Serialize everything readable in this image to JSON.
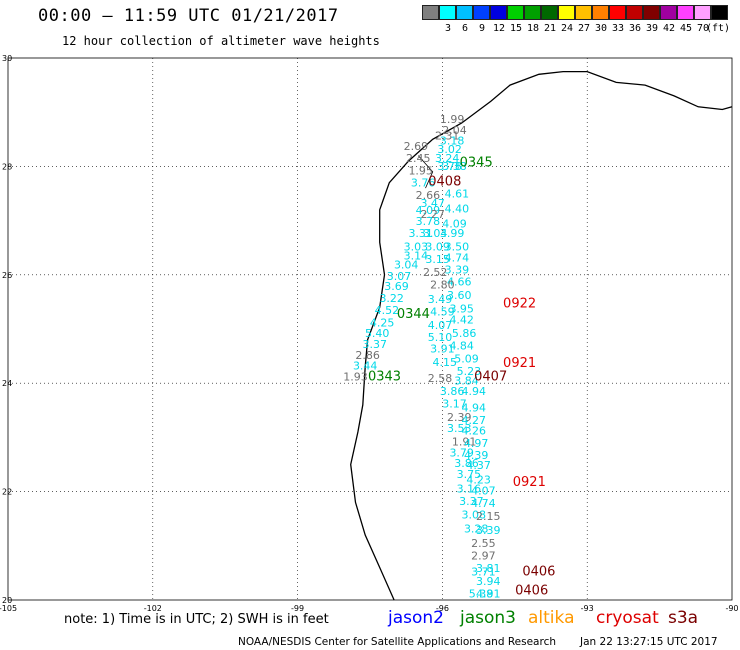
{
  "title": "00:00 – 11:59 UTC 01/21/2017",
  "subtitle": "12 hour collection of altimeter wave heights",
  "legend": {
    "unit": "(ft)",
    "bins": [
      {
        "label": "",
        "color": "#7f7f7f"
      },
      {
        "label": "3",
        "color": "#00ffff"
      },
      {
        "label": "6",
        "color": "#00bfff"
      },
      {
        "label": "9",
        "color": "#0040ff"
      },
      {
        "label": "12",
        "color": "#0000e0"
      },
      {
        "label": "15",
        "color": "#00d000"
      },
      {
        "label": "18",
        "color": "#00a000"
      },
      {
        "label": "21",
        "color": "#006800"
      },
      {
        "label": "24",
        "color": "#ffff00"
      },
      {
        "label": "27",
        "color": "#ffbf00"
      },
      {
        "label": "30",
        "color": "#ff8000"
      },
      {
        "label": "33",
        "color": "#ff0000"
      },
      {
        "label": "36",
        "color": "#c00000"
      },
      {
        "label": "39",
        "color": "#800000"
      },
      {
        "label": "42",
        "color": "#a000a0"
      },
      {
        "label": "45",
        "color": "#ff40ff"
      },
      {
        "label": "70",
        "color": "#ffa0ff"
      },
      {
        "label": "",
        "color": "#000000"
      }
    ]
  },
  "axes": {
    "lon_ticks": [
      "-105",
      "-102",
      "-99",
      "-96",
      "-93",
      "-90"
    ],
    "lat_ticks": [
      "20",
      "22",
      "24",
      "26",
      "28",
      "30"
    ]
  },
  "colors": {
    "cyan": "#00d8e8",
    "gray": "#707070",
    "jason2": "#0000ff",
    "jason3": "#008000",
    "altika": "#ff9900",
    "cryosat": "#dd0000",
    "s3a": "#7a0000"
  },
  "track_times": [
    {
      "text": "0345",
      "lon": -95.3,
      "lat": 28.0,
      "sat": "jason3"
    },
    {
      "text": "0408",
      "lon": -95.95,
      "lat": 27.65,
      "sat": "s3a"
    },
    {
      "text": "0922",
      "lon": -94.4,
      "lat": 25.4,
      "sat": "cryosat"
    },
    {
      "text": "0344",
      "lon": -96.6,
      "lat": 25.2,
      "sat": "jason3"
    },
    {
      "text": "0921",
      "lon": -94.4,
      "lat": 24.3,
      "sat": "cryosat"
    },
    {
      "text": "0343",
      "lon": -97.2,
      "lat": 24.05,
      "sat": "jason3"
    },
    {
      "text": "0407",
      "lon": -95.0,
      "lat": 24.05,
      "sat": "s3a"
    },
    {
      "text": "0921",
      "lon": -94.2,
      "lat": 22.1,
      "sat": "cryosat"
    },
    {
      "text": "0406",
      "lon": -94.0,
      "lat": 20.45,
      "sat": "s3a"
    },
    {
      "text": "0406",
      "lon": -94.15,
      "lat": 20.1,
      "sat": "s3a"
    }
  ],
  "observations": [
    {
      "v": "1.99",
      "lon": -95.8,
      "lat": 28.8,
      "c": "gray"
    },
    {
      "v": "2.04",
      "lon": -95.75,
      "lat": 28.6,
      "c": "gray"
    },
    {
      "v": "2.31",
      "lon": -95.9,
      "lat": 28.5,
      "c": "gray"
    },
    {
      "v": "3.18",
      "lon": -95.8,
      "lat": 28.4,
      "c": "cyan"
    },
    {
      "v": "3.02",
      "lon": -95.85,
      "lat": 28.25,
      "c": "cyan"
    },
    {
      "v": "3.24",
      "lon": -95.9,
      "lat": 28.08,
      "c": "cyan"
    },
    {
      "v": "3.78",
      "lon": -95.85,
      "lat": 27.93,
      "c": "cyan"
    },
    {
      "v": "3.38",
      "lon": -95.75,
      "lat": 27.93,
      "c": "cyan"
    },
    {
      "v": "2.69",
      "lon": -96.55,
      "lat": 28.3,
      "c": "gray"
    },
    {
      "v": "2.45",
      "lon": -96.5,
      "lat": 28.08,
      "c": "gray"
    },
    {
      "v": "1.95",
      "lon": -96.45,
      "lat": 27.85,
      "c": "gray"
    },
    {
      "v": "3.76",
      "lon": -96.4,
      "lat": 27.63,
      "c": "cyan"
    },
    {
      "v": "4.61",
      "lon": -95.7,
      "lat": 27.43,
      "c": "cyan"
    },
    {
      "v": "2.66",
      "lon": -96.3,
      "lat": 27.4,
      "c": "gray"
    },
    {
      "v": "3.47",
      "lon": -96.2,
      "lat": 27.25,
      "c": "cyan"
    },
    {
      "v": "4.40",
      "lon": -95.7,
      "lat": 27.15,
      "c": "cyan"
    },
    {
      "v": "4.09",
      "lon": -96.3,
      "lat": 27.12,
      "c": "cyan"
    },
    {
      "v": "2.27",
      "lon": -96.2,
      "lat": 27.05,
      "c": "gray"
    },
    {
      "v": "3.78",
      "lon": -96.3,
      "lat": 26.92,
      "c": "cyan"
    },
    {
      "v": "4.09",
      "lon": -95.75,
      "lat": 26.87,
      "c": "cyan"
    },
    {
      "v": "3.31",
      "lon": -96.45,
      "lat": 26.7,
      "c": "cyan"
    },
    {
      "v": "3.04",
      "lon": -96.15,
      "lat": 26.7,
      "c": "cyan"
    },
    {
      "v": "3.99",
      "lon": -95.8,
      "lat": 26.7,
      "c": "cyan"
    },
    {
      "v": "3.03",
      "lon": -96.55,
      "lat": 26.45,
      "c": "cyan"
    },
    {
      "v": "3.09",
      "lon": -96.1,
      "lat": 26.45,
      "c": "cyan"
    },
    {
      "v": "3.50",
      "lon": -95.7,
      "lat": 26.45,
      "c": "cyan"
    },
    {
      "v": "3.14",
      "lon": -96.55,
      "lat": 26.28,
      "c": "cyan"
    },
    {
      "v": "3.15",
      "lon": -96.1,
      "lat": 26.22,
      "c": "cyan"
    },
    {
      "v": "4.74",
      "lon": -95.7,
      "lat": 26.25,
      "c": "cyan"
    },
    {
      "v": "3.04",
      "lon": -96.75,
      "lat": 26.12,
      "c": "cyan"
    },
    {
      "v": "3.39",
      "lon": -95.7,
      "lat": 26.02,
      "c": "cyan"
    },
    {
      "v": "2.52",
      "lon": -96.15,
      "lat": 25.98,
      "c": "gray"
    },
    {
      "v": "3.07",
      "lon": -96.9,
      "lat": 25.9,
      "c": "cyan"
    },
    {
      "v": "4.66",
      "lon": -95.65,
      "lat": 25.8,
      "c": "cyan"
    },
    {
      "v": "2.80",
      "lon": -96.0,
      "lat": 25.75,
      "c": "gray"
    },
    {
      "v": "3.69",
      "lon": -96.95,
      "lat": 25.72,
      "c": "cyan"
    },
    {
      "v": "3.22",
      "lon": -97.05,
      "lat": 25.5,
      "c": "cyan"
    },
    {
      "v": "3.49",
      "lon": -96.05,
      "lat": 25.48,
      "c": "cyan"
    },
    {
      "v": "3.60",
      "lon": -95.65,
      "lat": 25.55,
      "c": "cyan"
    },
    {
      "v": "4.52",
      "lon": -97.15,
      "lat": 25.28,
      "c": "cyan"
    },
    {
      "v": "4.59",
      "lon": -96.0,
      "lat": 25.25,
      "c": "cyan"
    },
    {
      "v": "3.95",
      "lon": -95.6,
      "lat": 25.3,
      "c": "cyan"
    },
    {
      "v": "4.25",
      "lon": -97.25,
      "lat": 25.05,
      "c": "cyan"
    },
    {
      "v": "4.07",
      "lon": -96.05,
      "lat": 25.0,
      "c": "cyan"
    },
    {
      "v": "4.42",
      "lon": -95.6,
      "lat": 25.1,
      "c": "cyan"
    },
    {
      "v": "5.40",
      "lon": -97.35,
      "lat": 24.85,
      "c": "cyan"
    },
    {
      "v": "5.10",
      "lon": -96.05,
      "lat": 24.78,
      "c": "cyan"
    },
    {
      "v": "5.86",
      "lon": -95.55,
      "lat": 24.85,
      "c": "cyan"
    },
    {
      "v": "3.37",
      "lon": -97.4,
      "lat": 24.65,
      "c": "cyan"
    },
    {
      "v": "3.91",
      "lon": -96.0,
      "lat": 24.57,
      "c": "cyan"
    },
    {
      "v": "4.84",
      "lon": -95.6,
      "lat": 24.62,
      "c": "cyan"
    },
    {
      "v": "2.86",
      "lon": -97.55,
      "lat": 24.45,
      "c": "gray"
    },
    {
      "v": "4.15",
      "lon": -95.95,
      "lat": 24.32,
      "c": "cyan"
    },
    {
      "v": "5.09",
      "lon": -95.5,
      "lat": 24.38,
      "c": "cyan"
    },
    {
      "v": "3.44",
      "lon": -97.6,
      "lat": 24.25,
      "c": "cyan"
    },
    {
      "v": "5.23",
      "lon": -95.45,
      "lat": 24.15,
      "c": "cyan"
    },
    {
      "v": "1.93",
      "lon": -97.8,
      "lat": 24.05,
      "c": "gray"
    },
    {
      "v": "2.58",
      "lon": -96.05,
      "lat": 24.02,
      "c": "gray"
    },
    {
      "v": "3.84",
      "lon": -95.5,
      "lat": 23.98,
      "c": "cyan"
    },
    {
      "v": "3.86",
      "lon": -95.8,
      "lat": 23.78,
      "c": "cyan"
    },
    {
      "v": "4.94",
      "lon": -95.35,
      "lat": 23.78,
      "c": "cyan"
    },
    {
      "v": "3.17",
      "lon": -95.75,
      "lat": 23.55,
      "c": "cyan"
    },
    {
      "v": "4.94",
      "lon": -95.35,
      "lat": 23.48,
      "c": "cyan"
    },
    {
      "v": "2.39",
      "lon": -95.65,
      "lat": 23.3,
      "c": "gray"
    },
    {
      "v": "4.27",
      "lon": -95.35,
      "lat": 23.25,
      "c": "cyan"
    },
    {
      "v": "3.53",
      "lon": -95.65,
      "lat": 23.1,
      "c": "cyan"
    },
    {
      "v": "4.26",
      "lon": -95.35,
      "lat": 23.05,
      "c": "cyan"
    },
    {
      "v": "1.91",
      "lon": -95.55,
      "lat": 22.85,
      "c": "gray"
    },
    {
      "v": "4.97",
      "lon": -95.3,
      "lat": 22.82,
      "c": "cyan"
    },
    {
      "v": "3.79",
      "lon": -95.6,
      "lat": 22.65,
      "c": "cyan"
    },
    {
      "v": "4.39",
      "lon": -95.3,
      "lat": 22.6,
      "c": "cyan"
    },
    {
      "v": "3.86",
      "lon": -95.5,
      "lat": 22.45,
      "c": "cyan"
    },
    {
      "v": "4.37",
      "lon": -95.25,
      "lat": 22.42,
      "c": "cyan"
    },
    {
      "v": "3.75",
      "lon": -95.45,
      "lat": 22.25,
      "c": "cyan"
    },
    {
      "v": "4.23",
      "lon": -95.25,
      "lat": 22.15,
      "c": "cyan"
    },
    {
      "v": "3.16",
      "lon": -95.45,
      "lat": 21.98,
      "c": "cyan"
    },
    {
      "v": "4.07",
      "lon": -95.15,
      "lat": 21.95,
      "c": "cyan"
    },
    {
      "v": "3.37",
      "lon": -95.4,
      "lat": 21.75,
      "c": "cyan"
    },
    {
      "v": "4.74",
      "lon": -95.15,
      "lat": 21.72,
      "c": "cyan"
    },
    {
      "v": "3.08",
      "lon": -95.35,
      "lat": 21.5,
      "c": "cyan"
    },
    {
      "v": "2.15",
      "lon": -95.05,
      "lat": 21.48,
      "c": "gray"
    },
    {
      "v": "3.28",
      "lon": -95.3,
      "lat": 21.25,
      "c": "cyan"
    },
    {
      "v": "3.39",
      "lon": -95.05,
      "lat": 21.22,
      "c": "cyan"
    },
    {
      "v": "2.55",
      "lon": -95.15,
      "lat": 20.98,
      "c": "gray"
    },
    {
      "v": "2.97",
      "lon": -95.15,
      "lat": 20.75,
      "c": "gray"
    },
    {
      "v": "3.81",
      "lon": -95.05,
      "lat": 20.52,
      "c": "cyan"
    },
    {
      "v": "3.71",
      "lon": -95.15,
      "lat": 20.45,
      "c": "cyan"
    },
    {
      "v": "3.94",
      "lon": -95.05,
      "lat": 20.28,
      "c": "cyan"
    },
    {
      "v": "5.38",
      "lon": -95.2,
      "lat": 20.05,
      "c": "cyan"
    },
    {
      "v": "4.91",
      "lon": -95.05,
      "lat": 20.05,
      "c": "cyan"
    }
  ],
  "note": "note: 1) Time is in UTC; 2) SWH is in feet",
  "satellites": [
    {
      "name": "jason2",
      "key": "jason2"
    },
    {
      "name": "jason3",
      "key": "jason3"
    },
    {
      "name": "altika",
      "key": "altika"
    },
    {
      "name": "cryosat",
      "key": "cryosat"
    },
    {
      "name": "s3a",
      "key": "s3a"
    }
  ],
  "credit": "NOAA/NESDIS Center for Satellite Applications and Research",
  "timestamp": "Jan 22 13:27:15 UTC 2017"
}
